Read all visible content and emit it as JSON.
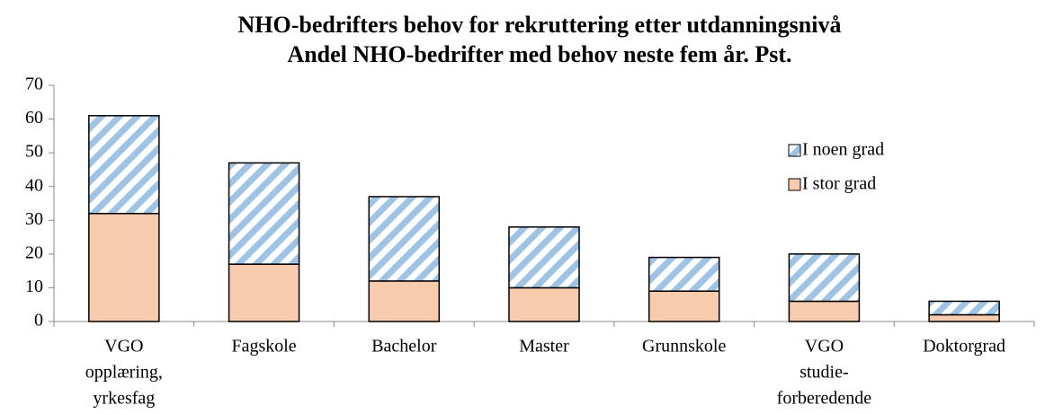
{
  "chart_data": {
    "type": "stacked_bar",
    "title": [
      "NHO-bedrifters behov for rekruttering etter utdanningsnivå",
      "Andel NHO-bedrifter med behov neste fem år. Pst."
    ],
    "categories": [
      [
        "VGO",
        "opplæring,",
        "yrkesfag"
      ],
      [
        "Fagskole"
      ],
      [
        "Bachelor"
      ],
      [
        "Master"
      ],
      [
        "Grunnskole"
      ],
      [
        "VGO",
        "studie-",
        "forberedende"
      ],
      [
        "Doktorgrad"
      ]
    ],
    "series": [
      {
        "name": "I stor grad",
        "color": "#f8cbad",
        "values": [
          32,
          17,
          12,
          10,
          9,
          6,
          2
        ]
      },
      {
        "name": "I noen grad",
        "color": "#9dc3e6",
        "pattern": "hatch",
        "values": [
          29,
          30,
          25,
          18,
          10,
          14,
          4
        ]
      }
    ],
    "ylim": [
      0,
      70
    ],
    "yticks": [
      0,
      10,
      20,
      30,
      40,
      50,
      60,
      70
    ],
    "legend": "right"
  }
}
